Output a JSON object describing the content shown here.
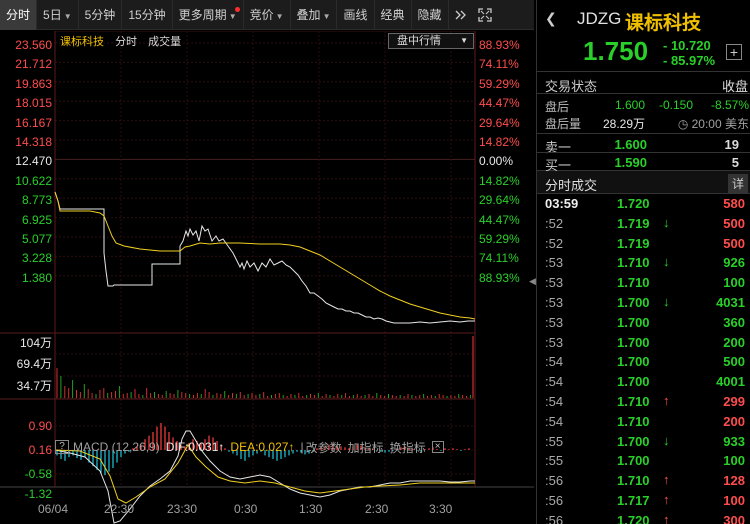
{
  "toolbar": {
    "items": [
      {
        "label": "分时",
        "active": true
      },
      {
        "label": "5日",
        "caret": true
      },
      {
        "label": "5分钟"
      },
      {
        "label": "15分钟"
      },
      {
        "label": "更多周期",
        "caret": true,
        "dot": true
      },
      {
        "label": "竞价",
        "caret": true
      },
      {
        "label": "叠加",
        "caret": true
      },
      {
        "label": "画线"
      },
      {
        "label": "经典"
      },
      {
        "label": "隐藏"
      }
    ]
  },
  "chart": {
    "legend": {
      "name": "课标科技",
      "fenshi": "分时",
      "volume": "成交量"
    },
    "select": "盘中行情",
    "price_axis": [
      "23.560",
      "21.712",
      "19.863",
      "18.015",
      "16.167",
      "14.318",
      "12.470",
      "10.622",
      "8.773",
      "6.925",
      "5.077",
      "3.228",
      "1.380"
    ],
    "pct_axis": [
      "88.93%",
      "74.11%",
      "59.29%",
      "44.47%",
      "29.64%",
      "14.82%",
      "0.00%",
      "14.82%",
      "29.64%",
      "44.47%",
      "59.29%",
      "74.11%",
      "88.93%"
    ],
    "vol_axis": [
      "104万",
      "69.4万",
      "34.7万"
    ],
    "macd_axis": [
      "0.90",
      "0.16",
      "-0.58",
      "-1.32"
    ],
    "time_axis": [
      "06/04",
      "22:30",
      "23:30",
      "0:30",
      "1:30",
      "2:30",
      "3:30"
    ],
    "macd": {
      "q": "?",
      "title": "MACD (12,26,9)",
      "dif": "DIF:0.031↑",
      "dea": "DEA:0.027↑",
      "sep": "|",
      "change": "改参数",
      "add": "加指标",
      "swap": "换指标",
      "close": "×"
    }
  },
  "quote": {
    "code": "JDZG",
    "name": "课标科技",
    "price": "1.750",
    "change": "- 10.720",
    "change_pct": "- 85.97%",
    "status_label": "交易状态",
    "status_value": "收盘",
    "after_label": "盘后",
    "after_price": "1.600",
    "after_change": "-0.150",
    "after_pct": "-8.57%",
    "after_vol_label": "盘后量",
    "after_vol": "28.29万",
    "after_time": "20:00 美东",
    "sell1_label": "卖一",
    "sell1_price": "1.600",
    "sell1_qty": "19",
    "buy1_label": "买一",
    "buy1_price": "1.590",
    "buy1_qty": "5",
    "ticks_title": "分时成交",
    "ticks_detail": "详",
    "colors": {
      "up": "#ff4d4d",
      "down": "#2ad02a",
      "flat": "#e8e8e8"
    }
  },
  "ticks": [
    {
      "time": "03:59",
      "price": "1.720",
      "arrow": "",
      "vol": "580",
      "dir": "up"
    },
    {
      "time": ":52",
      "price": "1.719",
      "arrow": "↓",
      "vol": "500",
      "dir": "up"
    },
    {
      "time": ":52",
      "price": "1.719",
      "arrow": "",
      "vol": "500",
      "dir": "up"
    },
    {
      "time": ":53",
      "price": "1.710",
      "arrow": "↓",
      "vol": "926",
      "dir": "down"
    },
    {
      "time": ":53",
      "price": "1.710",
      "arrow": "",
      "vol": "100",
      "dir": "down"
    },
    {
      "time": ":53",
      "price": "1.700",
      "arrow": "↓",
      "vol": "4031",
      "dir": "down"
    },
    {
      "time": ":53",
      "price": "1.700",
      "arrow": "",
      "vol": "360",
      "dir": "down"
    },
    {
      "time": ":53",
      "price": "1.700",
      "arrow": "",
      "vol": "200",
      "dir": "down"
    },
    {
      "time": ":54",
      "price": "1.700",
      "arrow": "",
      "vol": "500",
      "dir": "down"
    },
    {
      "time": ":54",
      "price": "1.700",
      "arrow": "",
      "vol": "4001",
      "dir": "down"
    },
    {
      "time": ":54",
      "price": "1.710",
      "arrow": "↑",
      "vol": "299",
      "dir": "up"
    },
    {
      "time": ":54",
      "price": "1.710",
      "arrow": "",
      "vol": "200",
      "dir": "up"
    },
    {
      "time": ":55",
      "price": "1.700",
      "arrow": "↓",
      "vol": "933",
      "dir": "down"
    },
    {
      "time": ":55",
      "price": "1.700",
      "arrow": "",
      "vol": "100",
      "dir": "down"
    },
    {
      "time": ":56",
      "price": "1.710",
      "arrow": "↑",
      "vol": "128",
      "dir": "up"
    },
    {
      "time": ":56",
      "price": "1.717",
      "arrow": "↑",
      "vol": "100",
      "dir": "up"
    },
    {
      "time": ":56",
      "price": "1.720",
      "arrow": "↑",
      "vol": "300",
      "dir": "up"
    }
  ]
}
